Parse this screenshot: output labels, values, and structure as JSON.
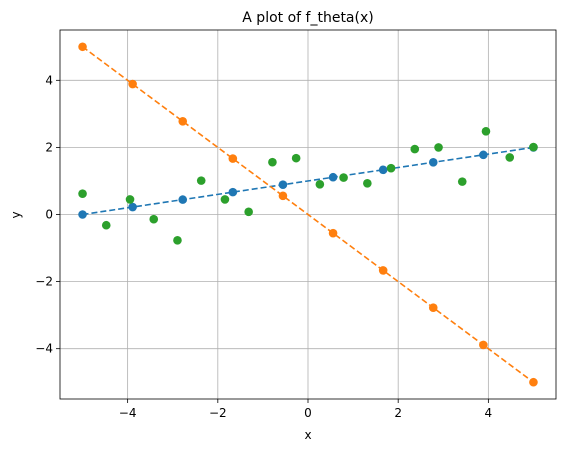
{
  "chart_data": {
    "type": "scatter",
    "title": "A plot of f_theta(x)",
    "xlabel": "x",
    "ylabel": "y",
    "xlim": [
      -5.5,
      5.5
    ],
    "ylim": [
      -5.5,
      5.5
    ],
    "xticks": [
      -4,
      -2,
      0,
      2,
      4
    ],
    "yticks": [
      -4,
      -2,
      0,
      2,
      4
    ],
    "xtick_labels": [
      "−4",
      "−2",
      "0",
      "2",
      "4"
    ],
    "ytick_labels": [
      "−4",
      "−2",
      "0",
      "2",
      "4"
    ],
    "grid": true,
    "series": [
      {
        "color": "#1f77b4",
        "style": "dashed-line-with-markers",
        "x": [
          -5,
          -3.889,
          -2.778,
          -1.667,
          -0.556,
          0.556,
          1.667,
          2.778,
          3.889,
          5
        ],
        "y": [
          0,
          0.222,
          0.444,
          0.667,
          0.889,
          1.111,
          1.333,
          1.556,
          1.778,
          2
        ]
      },
      {
        "color": "#ff7f0e",
        "style": "dashed-line-with-markers",
        "x": [
          -5,
          -3.889,
          -2.778,
          -1.667,
          -0.556,
          0.556,
          1.667,
          2.778,
          3.889,
          5
        ],
        "y": [
          5,
          3.889,
          2.778,
          1.667,
          0.556,
          -0.556,
          -1.667,
          -2.778,
          -3.889,
          -5
        ]
      },
      {
        "color": "#2ca02c",
        "style": "markers",
        "x": [
          -5,
          -4.474,
          -3.947,
          -3.421,
          -2.895,
          -2.368,
          -1.842,
          -1.316,
          -0.789,
          -0.263,
          0.263,
          0.789,
          1.316,
          1.842,
          2.368,
          2.895,
          3.421,
          3.947,
          4.474,
          5
        ],
        "y": [
          0.62,
          -0.32,
          0.45,
          -0.14,
          -0.77,
          1.01,
          0.45,
          0.08,
          1.56,
          1.68,
          0.9,
          1.1,
          0.93,
          1.38,
          1.95,
          2.0,
          0.98,
          2.48,
          1.7,
          2.01
        ]
      }
    ]
  }
}
